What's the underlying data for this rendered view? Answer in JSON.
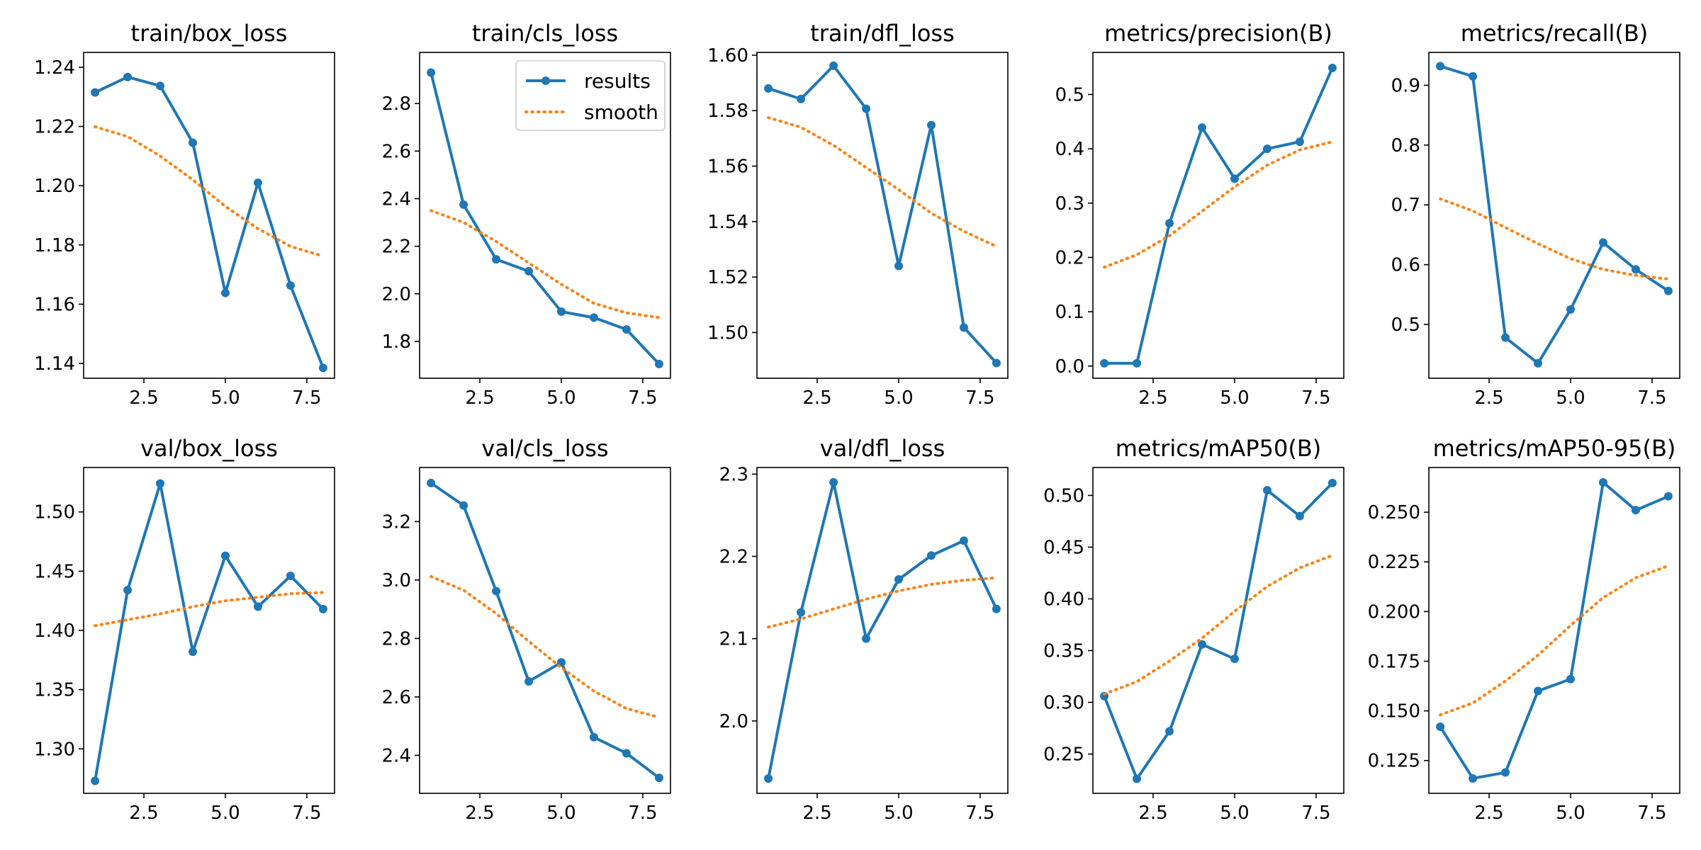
{
  "colors": {
    "results": "#1f77b4",
    "smooth": "#ff7f0e",
    "axes": "#000000",
    "background": "#ffffff"
  },
  "legend": {
    "entries": [
      "results",
      "smooth"
    ],
    "placement": "upper-right of panel 2"
  },
  "chart_data": [
    {
      "type": "line",
      "title": "train/box_loss",
      "x": [
        1,
        2,
        3,
        4,
        5,
        6,
        7,
        8
      ],
      "xlim": [
        0.65,
        8.35
      ],
      "ylim": [
        1.135,
        1.245
      ],
      "xticks": [
        2.5,
        5.0,
        7.5
      ],
      "xtick_labels": [
        "2.5",
        "5.0",
        "7.5"
      ],
      "yticks": [
        1.14,
        1.16,
        1.18,
        1.2,
        1.22,
        1.24
      ],
      "ytick_labels": [
        "1.14",
        "1.16",
        "1.18",
        "1.20",
        "1.22",
        "1.24"
      ],
      "series": [
        {
          "name": "results",
          "style": "line-marker",
          "values": [
            1.2315,
            1.2367,
            1.2337,
            1.2145,
            1.1638,
            1.201,
            1.1663,
            1.1385
          ]
        },
        {
          "name": "smooth",
          "style": "dotted",
          "values": [
            1.2199,
            1.2166,
            1.21,
            1.202,
            1.193,
            1.1855,
            1.1795,
            1.1762
          ]
        }
      ]
    },
    {
      "type": "line",
      "title": "train/cls_loss",
      "x": [
        1,
        2,
        3,
        4,
        5,
        6,
        7,
        8
      ],
      "xlim": [
        0.65,
        8.35
      ],
      "ylim": [
        1.645,
        3.015
      ],
      "xticks": [
        2.5,
        5.0,
        7.5
      ],
      "xtick_labels": [
        "2.5",
        "5.0",
        "7.5"
      ],
      "yticks": [
        1.8,
        2.0,
        2.2,
        2.4,
        2.6,
        2.8
      ],
      "ytick_labels": [
        "1.8",
        "2.0",
        "2.2",
        "2.4",
        "2.6",
        "2.8"
      ],
      "legend": true,
      "series": [
        {
          "name": "results",
          "style": "line-marker",
          "values": [
            2.93,
            2.375,
            2.145,
            2.095,
            1.925,
            1.9,
            1.85,
            1.705
          ]
        },
        {
          "name": "smooth",
          "style": "dotted",
          "values": [
            2.35,
            2.3,
            2.22,
            2.13,
            2.04,
            1.96,
            1.92,
            1.9
          ]
        }
      ]
    },
    {
      "type": "line",
      "title": "train/dfl_loss",
      "x": [
        1,
        2,
        3,
        4,
        5,
        6,
        7,
        8
      ],
      "xlim": [
        0.65,
        8.35
      ],
      "ylim": [
        1.4835,
        1.601
      ],
      "xticks": [
        2.5,
        5.0,
        7.5
      ],
      "xtick_labels": [
        "2.5",
        "5.0",
        "7.5"
      ],
      "yticks": [
        1.5,
        1.52,
        1.54,
        1.56,
        1.58,
        1.6
      ],
      "ytick_labels": [
        "1.50",
        "1.52",
        "1.54",
        "1.56",
        "1.58",
        "1.60"
      ],
      "series": [
        {
          "name": "results",
          "style": "line-marker",
          "values": [
            1.588,
            1.5842,
            1.5962,
            1.5807,
            1.524,
            1.5748,
            1.5018,
            1.489
          ]
        },
        {
          "name": "smooth",
          "style": "dotted",
          "values": [
            1.5775,
            1.574,
            1.5675,
            1.5595,
            1.5515,
            1.543,
            1.5365,
            1.531
          ]
        }
      ]
    },
    {
      "type": "line",
      "title": "metrics/precision(B)",
      "x": [
        1,
        2,
        3,
        4,
        5,
        6,
        7,
        8
      ],
      "xlim": [
        0.65,
        8.35
      ],
      "ylim": [
        -0.0225,
        0.5775
      ],
      "xticks": [
        2.5,
        5.0,
        7.5
      ],
      "xtick_labels": [
        "2.5",
        "5.0",
        "7.5"
      ],
      "yticks": [
        0.0,
        0.1,
        0.2,
        0.3,
        0.4,
        0.5
      ],
      "ytick_labels": [
        "0.0",
        "0.1",
        "0.2",
        "0.3",
        "0.4",
        "0.5"
      ],
      "series": [
        {
          "name": "results",
          "style": "line-marker",
          "values": [
            0.005,
            0.005,
            0.263,
            0.439,
            0.345,
            0.4,
            0.413,
            0.549
          ]
        },
        {
          "name": "smooth",
          "style": "dotted",
          "values": [
            0.182,
            0.205,
            0.24,
            0.285,
            0.33,
            0.37,
            0.398,
            0.413
          ]
        }
      ]
    },
    {
      "type": "line",
      "title": "metrics/recall(B)",
      "x": [
        1,
        2,
        3,
        4,
        5,
        6,
        7,
        8
      ],
      "xlim": [
        0.65,
        8.35
      ],
      "ylim": [
        0.41,
        0.955
      ],
      "xticks": [
        2.5,
        5.0,
        7.5
      ],
      "xtick_labels": [
        "2.5",
        "5.0",
        "7.5"
      ],
      "yticks": [
        0.5,
        0.6,
        0.7,
        0.8,
        0.9
      ],
      "ytick_labels": [
        "0.5",
        "0.6",
        "0.7",
        "0.8",
        "0.9"
      ],
      "series": [
        {
          "name": "results",
          "style": "line-marker",
          "values": [
            0.932,
            0.915,
            0.478,
            0.435,
            0.525,
            0.637,
            0.592,
            0.556
          ]
        },
        {
          "name": "smooth",
          "style": "dotted",
          "values": [
            0.71,
            0.69,
            0.662,
            0.635,
            0.61,
            0.592,
            0.582,
            0.576
          ]
        }
      ]
    },
    {
      "type": "line",
      "title": "val/box_loss",
      "x": [
        1,
        2,
        3,
        4,
        5,
        6,
        7,
        8
      ],
      "xlim": [
        0.65,
        8.35
      ],
      "ylim": [
        1.2625,
        1.5375
      ],
      "xticks": [
        2.5,
        5.0,
        7.5
      ],
      "xtick_labels": [
        "2.5",
        "5.0",
        "7.5"
      ],
      "yticks": [
        1.3,
        1.35,
        1.4,
        1.45,
        1.5
      ],
      "ytick_labels": [
        "1.30",
        "1.35",
        "1.40",
        "1.45",
        "1.50"
      ],
      "series": [
        {
          "name": "results",
          "style": "line-marker",
          "values": [
            1.273,
            1.434,
            1.524,
            1.382,
            1.463,
            1.42,
            1.446,
            1.418
          ]
        },
        {
          "name": "smooth",
          "style": "dotted",
          "values": [
            1.404,
            1.409,
            1.414,
            1.42,
            1.425,
            1.428,
            1.431,
            1.432
          ]
        }
      ]
    },
    {
      "type": "line",
      "title": "val/cls_loss",
      "x": [
        1,
        2,
        3,
        4,
        5,
        6,
        7,
        8
      ],
      "xlim": [
        0.65,
        8.35
      ],
      "ylim": [
        2.27,
        3.385
      ],
      "xticks": [
        2.5,
        5.0,
        7.5
      ],
      "xtick_labels": [
        "2.5",
        "5.0",
        "7.5"
      ],
      "yticks": [
        2.4,
        2.6,
        2.8,
        3.0,
        3.2
      ],
      "ytick_labels": [
        "2.4",
        "2.6",
        "2.8",
        "3.0",
        "3.2"
      ],
      "series": [
        {
          "name": "results",
          "style": "line-marker",
          "values": [
            3.332,
            3.255,
            2.962,
            2.653,
            2.718,
            2.462,
            2.407,
            2.323
          ]
        },
        {
          "name": "smooth",
          "style": "dotted",
          "values": [
            3.012,
            2.965,
            2.885,
            2.79,
            2.7,
            2.62,
            2.56,
            2.53
          ]
        }
      ]
    },
    {
      "type": "line",
      "title": "val/dfl_loss",
      "x": [
        1,
        2,
        3,
        4,
        5,
        6,
        7,
        8
      ],
      "xlim": [
        0.65,
        8.35
      ],
      "ylim": [
        1.912,
        2.308
      ],
      "xticks": [
        2.5,
        5.0,
        7.5
      ],
      "xtick_labels": [
        "2.5",
        "5.0",
        "7.5"
      ],
      "yticks": [
        2.0,
        2.1,
        2.2,
        2.3
      ],
      "ytick_labels": [
        "2.0",
        "2.1",
        "2.2",
        "2.3"
      ],
      "series": [
        {
          "name": "results",
          "style": "line-marker",
          "values": [
            1.93,
            2.132,
            2.29,
            2.1,
            2.172,
            2.201,
            2.219,
            2.136
          ]
        },
        {
          "name": "smooth",
          "style": "dotted",
          "values": [
            2.114,
            2.124,
            2.136,
            2.148,
            2.158,
            2.166,
            2.171,
            2.174
          ]
        }
      ]
    },
    {
      "type": "line",
      "title": "metrics/mAP50(B)",
      "x": [
        1,
        2,
        3,
        4,
        5,
        6,
        7,
        8
      ],
      "xlim": [
        0.65,
        8.35
      ],
      "ylim": [
        0.212,
        0.527
      ],
      "xticks": [
        2.5,
        5.0,
        7.5
      ],
      "xtick_labels": [
        "2.5",
        "5.0",
        "7.5"
      ],
      "yticks": [
        0.25,
        0.3,
        0.35,
        0.4,
        0.45,
        0.5
      ],
      "ytick_labels": [
        "0.25",
        "0.30",
        "0.35",
        "0.40",
        "0.45",
        "0.50"
      ],
      "series": [
        {
          "name": "results",
          "style": "line-marker",
          "values": [
            0.306,
            0.226,
            0.272,
            0.356,
            0.342,
            0.505,
            0.48,
            0.512
          ]
        },
        {
          "name": "smooth",
          "style": "dotted",
          "values": [
            0.308,
            0.32,
            0.34,
            0.362,
            0.388,
            0.412,
            0.43,
            0.442
          ]
        }
      ]
    },
    {
      "type": "line",
      "title": "metrics/mAP50-95(B)",
      "x": [
        1,
        2,
        3,
        4,
        5,
        6,
        7,
        8
      ],
      "xlim": [
        0.65,
        8.35
      ],
      "ylim": [
        0.1085,
        0.2725
      ],
      "xticks": [
        2.5,
        5.0,
        7.5
      ],
      "xtick_labels": [
        "2.5",
        "5.0",
        "7.5"
      ],
      "yticks": [
        0.125,
        0.15,
        0.175,
        0.2,
        0.225,
        0.25
      ],
      "ytick_labels": [
        "0.125",
        "0.150",
        "0.175",
        "0.200",
        "0.225",
        "0.250"
      ],
      "series": [
        {
          "name": "results",
          "style": "line-marker",
          "values": [
            0.142,
            0.116,
            0.119,
            0.16,
            0.166,
            0.265,
            0.251,
            0.258
          ]
        },
        {
          "name": "smooth",
          "style": "dotted",
          "values": [
            0.148,
            0.154,
            0.165,
            0.178,
            0.193,
            0.207,
            0.217,
            0.223
          ]
        }
      ]
    }
  ]
}
